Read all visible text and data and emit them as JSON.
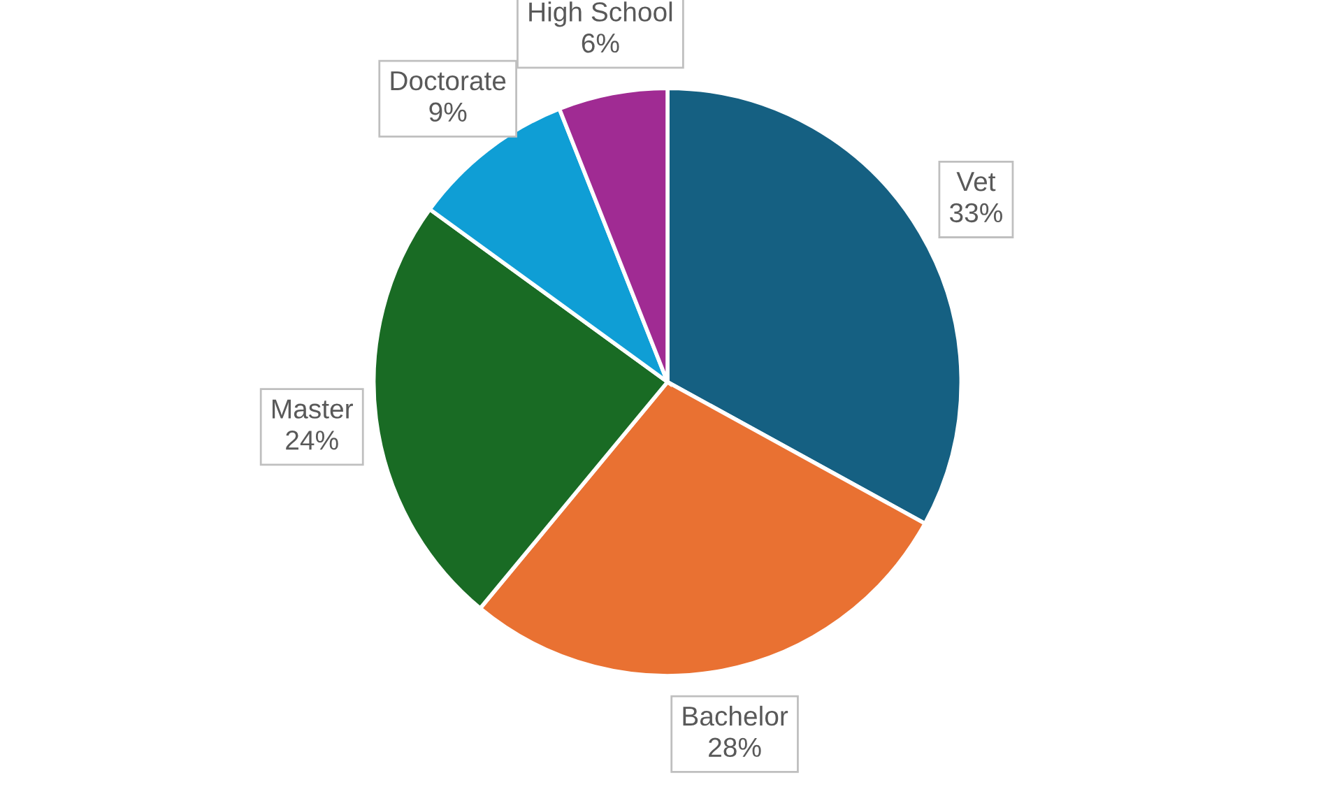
{
  "chart_data": {
    "type": "pie",
    "categories": [
      "Vet",
      "Bachelor",
      "Master",
      "Doctorate",
      "High School"
    ],
    "values": [
      33,
      28,
      24,
      9,
      6
    ],
    "value_labels": [
      "33%",
      "28%",
      "24%",
      "9%",
      "6%"
    ],
    "colors": [
      "#156082",
      "#e97132",
      "#196b24",
      "#0f9ed5",
      "#a02b93"
    ],
    "legend": false
  }
}
